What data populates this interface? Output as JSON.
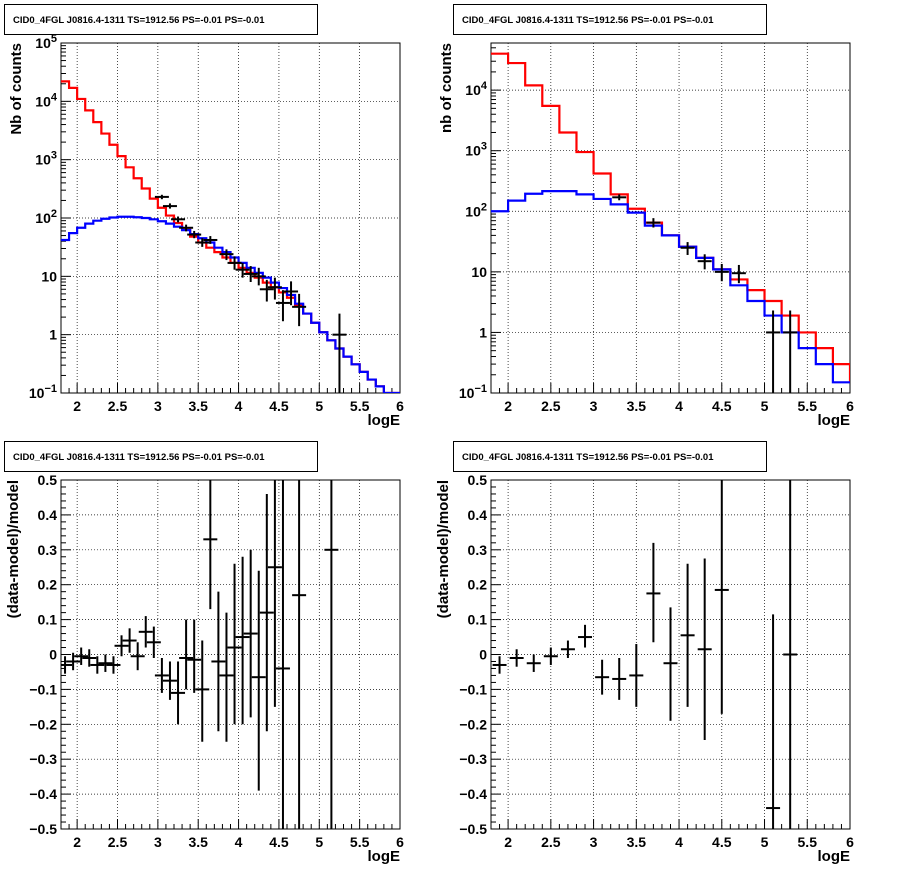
{
  "panels": [
    {
      "id": "counts_left",
      "title": "CID0_4FGL J0816.4-1311 TS=1912.56 PS=-0.01 PS=-0.01",
      "xlabel": "logE",
      "ylabel": "Nb of counts",
      "xlim": [
        1.8,
        6.0
      ],
      "xticks": [
        "2",
        "2.5",
        "3",
        "3.5",
        "4",
        "4.5",
        "5",
        "5.5",
        "6"
      ],
      "yscale": "log",
      "ylim": [
        0.1,
        100000
      ],
      "yticks": [
        {
          "v": 0.1,
          "base": "10",
          "exp": "−1"
        },
        {
          "v": 1,
          "label": "1"
        },
        {
          "v": 10,
          "label": "10"
        },
        {
          "v": 100,
          "base": "10",
          "exp": "2"
        },
        {
          "v": 1000,
          "base": "10",
          "exp": "3"
        },
        {
          "v": 10000,
          "base": "10",
          "exp": "4"
        },
        {
          "v": 100000,
          "base": "10",
          "exp": "5"
        }
      ],
      "grid": true
    },
    {
      "id": "counts_right",
      "title": "CID0_4FGL J0816.4-1311 TS=1912.56 PS=-0.01 PS=-0.01",
      "xlabel": "logE",
      "ylabel": "nb of counts",
      "xlim": [
        1.8,
        6.0
      ],
      "xticks": [
        "2",
        "2.5",
        "3",
        "3.5",
        "4",
        "4.5",
        "5",
        "5.5",
        "6"
      ],
      "yscale": "log",
      "ylim": [
        0.1,
        60000
      ],
      "yticks": [
        {
          "v": 0.1,
          "base": "10",
          "exp": "−1"
        },
        {
          "v": 1,
          "label": "1"
        },
        {
          "v": 10,
          "label": "10"
        },
        {
          "v": 100,
          "base": "10",
          "exp": "2"
        },
        {
          "v": 1000,
          "base": "10",
          "exp": "3"
        },
        {
          "v": 10000,
          "base": "10",
          "exp": "4"
        }
      ],
      "grid": true
    },
    {
      "id": "resid_left",
      "title": "CID0_4FGL J0816.4-1311 TS=1912.56 PS=-0.01 PS=-0.01",
      "xlabel": "logE",
      "ylabel": "(data-model)/model",
      "xlim": [
        1.8,
        6.0
      ],
      "xticks": [
        "2",
        "2.5",
        "3",
        "3.5",
        "4",
        "4.5",
        "5",
        "5.5",
        "6"
      ],
      "yscale": "linear",
      "ylim": [
        -0.5,
        0.5
      ],
      "yticks": [
        {
          "v": -0.5,
          "label": "−0.5"
        },
        {
          "v": -0.4,
          "label": "−0.4"
        },
        {
          "v": -0.3,
          "label": "−0.3"
        },
        {
          "v": -0.2,
          "label": "−0.2"
        },
        {
          "v": -0.1,
          "label": "−0.1"
        },
        {
          "v": 0,
          "label": "0"
        },
        {
          "v": 0.1,
          "label": "0.1"
        },
        {
          "v": 0.2,
          "label": "0.2"
        },
        {
          "v": 0.3,
          "label": "0.3"
        },
        {
          "v": 0.4,
          "label": "0.4"
        },
        {
          "v": 0.5,
          "label": "0.5"
        }
      ],
      "grid": true
    },
    {
      "id": "resid_right",
      "title": "CID0_4FGL J0816.4-1311 TS=1912.56 PS=-0.01 PS=-0.01",
      "xlabel": "logE",
      "ylabel": "(data-model)/model",
      "xlim": [
        1.8,
        6.0
      ],
      "xticks": [
        "2",
        "2.5",
        "3",
        "3.5",
        "4",
        "4.5",
        "5",
        "5.5",
        "6"
      ],
      "yscale": "linear",
      "ylim": [
        -0.5,
        0.5
      ],
      "yticks": [
        {
          "v": -0.5,
          "label": "−0.5"
        },
        {
          "v": -0.4,
          "label": "−0.4"
        },
        {
          "v": -0.3,
          "label": "−0.3"
        },
        {
          "v": -0.2,
          "label": "−0.2"
        },
        {
          "v": -0.1,
          "label": "−0.1"
        },
        {
          "v": 0,
          "label": "0"
        },
        {
          "v": 0.1,
          "label": "0.1"
        },
        {
          "v": 0.2,
          "label": "0.2"
        },
        {
          "v": 0.3,
          "label": "0.3"
        },
        {
          "v": 0.4,
          "label": "0.4"
        },
        {
          "v": 0.5,
          "label": "0.5"
        }
      ],
      "grid": true
    }
  ],
  "chart_data": [
    {
      "panel": "counts_left",
      "type": "line",
      "series": [
        {
          "color": "#ff0000",
          "style": "step",
          "edges": [
            1.8,
            1.9,
            2.0,
            2.1,
            2.2,
            2.3,
            2.4,
            2.5,
            2.6,
            2.7,
            2.8,
            2.9,
            3.0,
            3.1,
            3.2,
            3.3,
            3.4,
            3.5,
            3.6,
            3.7,
            3.8,
            3.9,
            4.0,
            4.1,
            4.2,
            4.3,
            4.4,
            4.5,
            4.6,
            4.7,
            4.8,
            4.9,
            5.0,
            5.1,
            5.2,
            5.3,
            5.4,
            5.5,
            5.6,
            5.7,
            5.8,
            5.9,
            6.0
          ],
          "values": [
            22000,
            17000,
            11000,
            7000,
            4400,
            2800,
            1800,
            1150,
            740,
            480,
            320,
            215,
            150,
            110,
            82,
            63,
            48,
            38,
            31,
            26,
            21,
            17,
            14,
            11.5,
            9.5,
            7.8,
            6.5,
            5.3,
            4.3,
            3.2,
            2.3,
            1.6,
            1.1,
            0.8,
            0.58,
            0.42,
            0.31,
            0.23,
            0.17,
            0.13,
            0.1,
            0.1
          ]
        },
        {
          "color": "#0000ff",
          "style": "step",
          "edges": [
            1.8,
            1.9,
            2.0,
            2.1,
            2.2,
            2.3,
            2.4,
            2.5,
            2.6,
            2.7,
            2.8,
            2.9,
            3.0,
            3.1,
            3.2,
            3.3,
            3.4,
            3.5,
            3.6,
            3.7,
            3.8,
            3.9,
            4.0,
            4.1,
            4.2,
            4.3,
            4.4,
            4.5,
            4.6,
            4.7,
            4.8,
            4.9,
            5.0,
            5.1,
            5.2,
            5.3,
            5.4,
            5.5,
            5.6,
            5.7,
            5.8,
            5.9,
            6.0
          ],
          "values": [
            42,
            55,
            68,
            80,
            90,
            97,
            102,
            105,
            105,
            103,
            100,
            95,
            88,
            80,
            71,
            62,
            53,
            45,
            38,
            31,
            26,
            21,
            17,
            14,
            11.5,
            9.5,
            7.8,
            6.3,
            4.8,
            3.4,
            2.3,
            1.6,
            1.1,
            0.8,
            0.58,
            0.42,
            0.31,
            0.23,
            0.17,
            0.13,
            0.1,
            0.1
          ]
        },
        {
          "color": "#000000",
          "style": "points",
          "points": [
            {
              "x": 3.05,
              "y": 230,
              "lo": 210,
              "hi": 250
            },
            {
              "x": 3.15,
              "y": 160,
              "lo": 145,
              "hi": 178
            },
            {
              "x": 3.25,
              "y": 95,
              "lo": 84,
              "hi": 106
            },
            {
              "x": 3.35,
              "y": 68,
              "lo": 59,
              "hi": 77
            },
            {
              "x": 3.45,
              "y": 52,
              "lo": 45,
              "hi": 60
            },
            {
              "x": 3.55,
              "y": 38,
              "lo": 32,
              "hi": 45
            },
            {
              "x": 3.65,
              "y": 42,
              "lo": 36,
              "hi": 49
            },
            {
              "x": 3.85,
              "y": 24,
              "lo": 19,
              "hi": 29
            },
            {
              "x": 3.95,
              "y": 17,
              "lo": 13,
              "hi": 22
            },
            {
              "x": 4.05,
              "y": 13,
              "lo": 9.5,
              "hi": 17
            },
            {
              "x": 4.15,
              "y": 11,
              "lo": 8,
              "hi": 15
            },
            {
              "x": 4.25,
              "y": 10,
              "lo": 7,
              "hi": 14
            },
            {
              "x": 4.35,
              "y": 6,
              "lo": 3.7,
              "hi": 8.7
            },
            {
              "x": 4.45,
              "y": 6.5,
              "lo": 4,
              "hi": 9.5
            },
            {
              "x": 4.55,
              "y": 3.5,
              "lo": 1.7,
              "hi": 5.8
            },
            {
              "x": 4.65,
              "y": 5.5,
              "lo": 3.2,
              "hi": 8.2
            },
            {
              "x": 4.75,
              "y": 3,
              "lo": 1.4,
              "hi": 5
            },
            {
              "x": 5.25,
              "y": 1,
              "lo": 0.1,
              "hi": 2.3
            }
          ]
        }
      ]
    },
    {
      "panel": "counts_right",
      "type": "line",
      "series": [
        {
          "color": "#ff0000",
          "style": "step",
          "edges": [
            1.8,
            2.0,
            2.2,
            2.4,
            2.6,
            2.8,
            3.0,
            3.2,
            3.4,
            3.6,
            3.8,
            4.0,
            4.2,
            4.4,
            4.6,
            4.8,
            5.0,
            5.2,
            5.4,
            5.6,
            5.8,
            6.0
          ],
          "values": [
            40000,
            28000,
            12000,
            5500,
            2000,
            950,
            420,
            190,
            110,
            65,
            40,
            26,
            17,
            11,
            7.5,
            5,
            3.3,
            1.9,
            1,
            0.55,
            0.3,
            0.15
          ]
        },
        {
          "color": "#0000ff",
          "style": "step",
          "edges": [
            1.8,
            2.0,
            2.2,
            2.4,
            2.6,
            2.8,
            3.0,
            3.2,
            3.4,
            3.6,
            3.8,
            4.0,
            4.2,
            4.4,
            4.6,
            4.8,
            5.0,
            5.2,
            5.4,
            5.6,
            5.8,
            6.0
          ],
          "values": [
            100,
            150,
            195,
            215,
            215,
            190,
            160,
            130,
            95,
            58,
            40,
            26,
            17,
            11,
            6,
            3.3,
            1.9,
            1,
            0.55,
            0.3,
            0.15
          ]
        },
        {
          "color": "#000000",
          "style": "points",
          "points": [
            {
              "x": 3.3,
              "y": 170,
              "lo": 152,
              "hi": 190
            },
            {
              "x": 3.7,
              "y": 65,
              "lo": 54,
              "hi": 77
            },
            {
              "x": 4.1,
              "y": 25,
              "lo": 19,
              "hi": 31
            },
            {
              "x": 4.3,
              "y": 15,
              "lo": 11,
              "hi": 19.5
            },
            {
              "x": 4.5,
              "y": 10,
              "lo": 7,
              "hi": 13.5
            },
            {
              "x": 4.7,
              "y": 9.5,
              "lo": 6.5,
              "hi": 13
            },
            {
              "x": 5.1,
              "y": 1,
              "lo": 0.1,
              "hi": 2.3
            },
            {
              "x": 5.3,
              "y": 1,
              "lo": 0.1,
              "hi": 2.3
            }
          ]
        }
      ]
    },
    {
      "panel": "resid_left",
      "type": "scatter",
      "series": [
        {
          "color": "#000000",
          "style": "points",
          "points": [
            {
              "x": 1.85,
              "y": -0.03,
              "lo": -0.055,
              "hi": -0.005
            },
            {
              "x": 1.95,
              "y": -0.02,
              "lo": -0.045,
              "hi": 0.005
            },
            {
              "x": 2.05,
              "y": -0.005,
              "lo": -0.03,
              "hi": 0.02
            },
            {
              "x": 2.15,
              "y": -0.01,
              "lo": -0.035,
              "hi": 0.015
            },
            {
              "x": 2.25,
              "y": -0.03,
              "lo": -0.055,
              "hi": -0.005
            },
            {
              "x": 2.35,
              "y": -0.025,
              "lo": -0.05,
              "hi": 0.0
            },
            {
              "x": 2.45,
              "y": -0.03,
              "lo": -0.055,
              "hi": -0.005
            },
            {
              "x": 2.55,
              "y": 0.025,
              "lo": -0.005,
              "hi": 0.055
            },
            {
              "x": 2.65,
              "y": 0.04,
              "lo": 0.005,
              "hi": 0.075
            },
            {
              "x": 2.75,
              "y": -0.005,
              "lo": -0.045,
              "hi": 0.035
            },
            {
              "x": 2.85,
              "y": 0.065,
              "lo": 0.02,
              "hi": 0.11
            },
            {
              "x": 2.95,
              "y": 0.035,
              "lo": -0.01,
              "hi": 0.08
            },
            {
              "x": 3.05,
              "y": -0.06,
              "lo": -0.11,
              "hi": -0.01
            },
            {
              "x": 3.15,
              "y": -0.075,
              "lo": -0.13,
              "hi": -0.02
            },
            {
              "x": 3.25,
              "y": -0.11,
              "lo": -0.2,
              "hi": -0.02
            },
            {
              "x": 3.35,
              "y": -0.01,
              "lo": -0.1,
              "hi": 0.1
            },
            {
              "x": 3.45,
              "y": -0.015,
              "lo": -0.11,
              "hi": 0.1
            },
            {
              "x": 3.55,
              "y": -0.1,
              "lo": -0.25,
              "hi": 0.04
            },
            {
              "x": 3.65,
              "y": 0.33,
              "lo": 0.13,
              "hi": 0.5
            },
            {
              "x": 3.75,
              "y": -0.02,
              "lo": -0.22,
              "hi": 0.18
            },
            {
              "x": 3.85,
              "y": -0.06,
              "lo": -0.25,
              "hi": 0.12
            },
            {
              "x": 3.95,
              "y": 0.02,
              "lo": -0.2,
              "hi": 0.26
            },
            {
              "x": 4.05,
              "y": 0.05,
              "lo": -0.2,
              "hi": 0.28
            },
            {
              "x": 4.15,
              "y": 0.06,
              "lo": -0.18,
              "hi": 0.3
            },
            {
              "x": 4.25,
              "y": -0.065,
              "lo": -0.39,
              "hi": 0.24
            },
            {
              "x": 4.35,
              "y": 0.12,
              "lo": -0.22,
              "hi": 0.46
            },
            {
              "x": 4.45,
              "y": 0.25,
              "lo": -0.15,
              "hi": 0.5
            },
            {
              "x": 4.55,
              "y": -0.04,
              "lo": -0.5,
              "hi": 0.5
            },
            {
              "x": 4.75,
              "y": 0.17,
              "lo": -0.5,
              "hi": 0.5
            },
            {
              "x": 5.15,
              "y": 0.3,
              "lo": -0.5,
              "hi": 0.5
            }
          ]
        }
      ]
    },
    {
      "panel": "resid_right",
      "type": "scatter",
      "series": [
        {
          "color": "#000000",
          "style": "points",
          "points": [
            {
              "x": 1.9,
              "y": -0.03,
              "lo": -0.055,
              "hi": -0.005
            },
            {
              "x": 2.1,
              "y": -0.01,
              "lo": -0.035,
              "hi": 0.015
            },
            {
              "x": 2.3,
              "y": -0.025,
              "lo": -0.05,
              "hi": 0.0
            },
            {
              "x": 2.5,
              "y": -0.005,
              "lo": -0.03,
              "hi": 0.02
            },
            {
              "x": 2.7,
              "y": 0.015,
              "lo": -0.01,
              "hi": 0.04
            },
            {
              "x": 2.9,
              "y": 0.05,
              "lo": 0.02,
              "hi": 0.085
            },
            {
              "x": 3.1,
              "y": -0.065,
              "lo": -0.115,
              "hi": -0.015
            },
            {
              "x": 3.3,
              "y": -0.07,
              "lo": -0.13,
              "hi": -0.01
            },
            {
              "x": 3.5,
              "y": -0.06,
              "lo": -0.15,
              "hi": 0.03
            },
            {
              "x": 3.7,
              "y": 0.175,
              "lo": 0.035,
              "hi": 0.32
            },
            {
              "x": 3.9,
              "y": -0.025,
              "lo": -0.19,
              "hi": 0.135
            },
            {
              "x": 4.1,
              "y": 0.055,
              "lo": -0.15,
              "hi": 0.26
            },
            {
              "x": 4.3,
              "y": 0.015,
              "lo": -0.245,
              "hi": 0.275
            },
            {
              "x": 4.5,
              "y": 0.185,
              "lo": -0.17,
              "hi": 0.5
            },
            {
              "x": 5.1,
              "y": -0.44,
              "lo": -0.5,
              "hi": 0.115
            },
            {
              "x": 5.3,
              "y": 0.0,
              "lo": -0.5,
              "hi": 0.5
            }
          ]
        }
      ]
    }
  ]
}
